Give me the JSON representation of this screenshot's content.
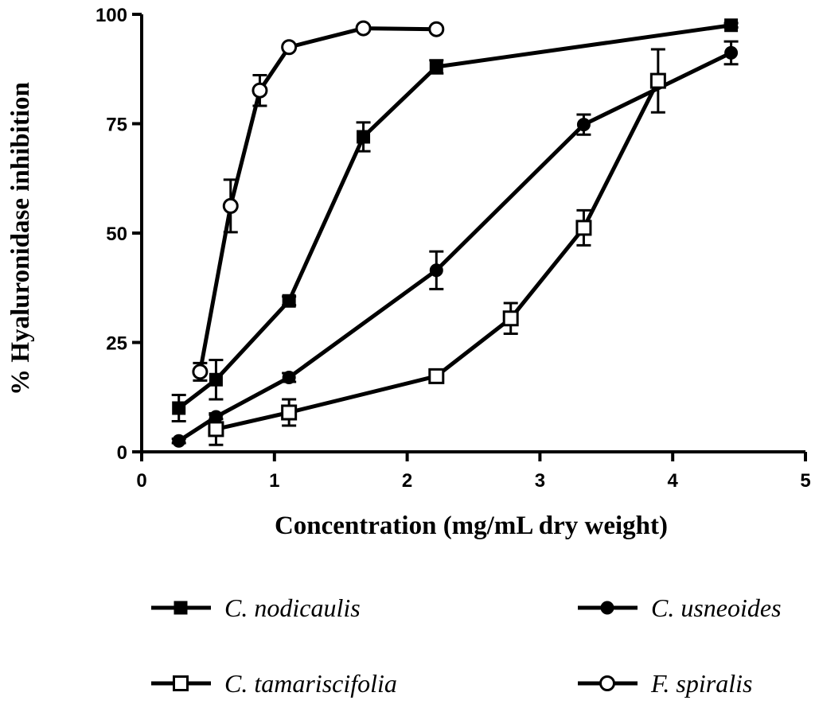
{
  "chart_data": {
    "type": "line",
    "title": "",
    "xlabel": "Concentration (mg/mL dry weight)",
    "ylabel": "% Hyaluronidase inhibition",
    "xlim": [
      0,
      5
    ],
    "ylim": [
      0,
      100
    ],
    "x_ticks": [
      0,
      1,
      2,
      3,
      4,
      5
    ],
    "x_tick_labels": [
      "0",
      "1",
      "2",
      "3",
      "4",
      "5"
    ],
    "y_ticks": [
      0,
      25,
      50,
      75,
      100
    ],
    "y_tick_labels": [
      "0",
      "25",
      "50",
      "75",
      "100"
    ],
    "grid": false,
    "legend_position": "bottom",
    "series": [
      {
        "name": "C. nodicaulis",
        "marker": "filled-square",
        "points": [
          {
            "x": 0.28,
            "y": 10,
            "err": 3
          },
          {
            "x": 0.56,
            "y": 16.5,
            "err": 4.5
          },
          {
            "x": 1.11,
            "y": 34.5,
            "err": 1
          },
          {
            "x": 1.67,
            "y": 72,
            "err": 3.3
          },
          {
            "x": 2.22,
            "y": 88,
            "err": 1.5
          },
          {
            "x": 4.44,
            "y": 97.5,
            "err": 0.5
          }
        ]
      },
      {
        "name": "C. usneoides",
        "marker": "filled-circle",
        "points": [
          {
            "x": 0.28,
            "y": 2.5,
            "err": 0.5
          },
          {
            "x": 0.56,
            "y": 8,
            "err": 0.5
          },
          {
            "x": 1.11,
            "y": 17,
            "err": 1
          },
          {
            "x": 2.22,
            "y": 41.5,
            "err": 4.3
          },
          {
            "x": 3.33,
            "y": 74.8,
            "err": 2.3
          },
          {
            "x": 4.44,
            "y": 91.2,
            "err": 2.6
          }
        ]
      },
      {
        "name": "C. tamariscifolia",
        "marker": "open-square",
        "points": [
          {
            "x": 0.56,
            "y": 5.2,
            "err": 3.6
          },
          {
            "x": 1.11,
            "y": 9,
            "err": 3
          },
          {
            "x": 2.22,
            "y": 17.3,
            "err": 1.5
          },
          {
            "x": 2.78,
            "y": 30.5,
            "err": 3.5
          },
          {
            "x": 3.33,
            "y": 51.2,
            "err": 4
          },
          {
            "x": 3.89,
            "y": 84.8,
            "err": 7.2
          }
        ]
      },
      {
        "name": "F. spiralis",
        "marker": "open-circle",
        "points": [
          {
            "x": 0.44,
            "y": 18.3,
            "err": 2
          },
          {
            "x": 0.67,
            "y": 56.2,
            "err": 6
          },
          {
            "x": 0.89,
            "y": 82.6,
            "err": 3.5
          },
          {
            "x": 1.11,
            "y": 92.5,
            "err": 0.5
          },
          {
            "x": 1.67,
            "y": 96.8,
            "err": 0.5
          },
          {
            "x": 2.22,
            "y": 96.6,
            "err": 0.5
          }
        ]
      }
    ]
  }
}
